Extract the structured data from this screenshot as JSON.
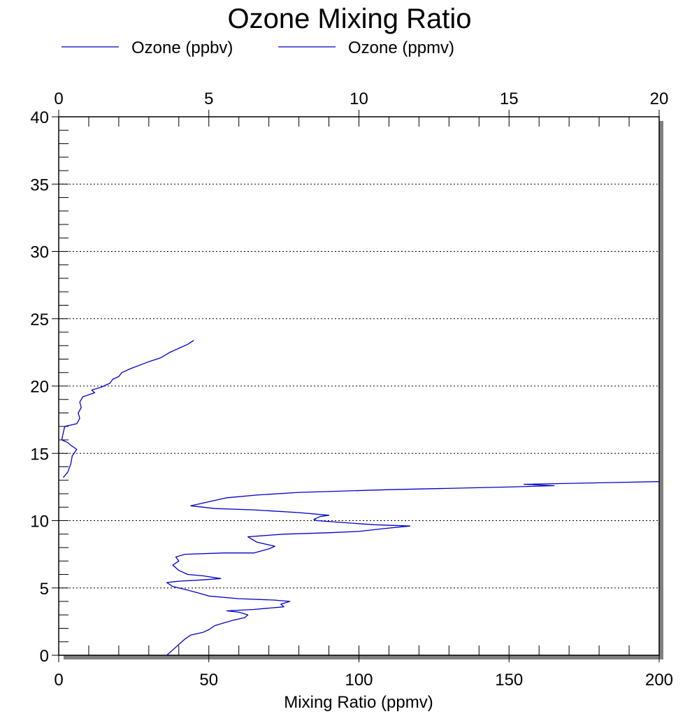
{
  "chart_data": {
    "type": "line",
    "title": "Ozone Mixing Ratio",
    "xlabel": "Mixing Ratio (ppmv)",
    "ylabel": "",
    "x2label": "",
    "xlim": [
      0,
      200
    ],
    "x2lim": [
      0,
      20
    ],
    "ylim": [
      0,
      40
    ],
    "x_ticks": [
      "0",
      "50",
      "100",
      "150",
      "200"
    ],
    "x2_ticks": [
      "0",
      "5",
      "10",
      "15",
      "20"
    ],
    "y_ticks": [
      "0",
      "5",
      "10",
      "15",
      "20",
      "25",
      "30",
      "35",
      "40"
    ],
    "grid": "horizontal-dotted",
    "legend": "top",
    "series": [
      {
        "name": "Ozone (ppbv)",
        "axis": "bottom",
        "color": "#0000c8",
        "points": [
          [
            36,
            0.0
          ],
          [
            38,
            0.4
          ],
          [
            40,
            0.8
          ],
          [
            42,
            1.2
          ],
          [
            44,
            1.5
          ],
          [
            48,
            1.7
          ],
          [
            50,
            1.9
          ],
          [
            52,
            2.2
          ],
          [
            55,
            2.4
          ],
          [
            58,
            2.6
          ],
          [
            62,
            2.8
          ],
          [
            63,
            3.0
          ],
          [
            60,
            3.2
          ],
          [
            56,
            3.3
          ],
          [
            65,
            3.4
          ],
          [
            70,
            3.5
          ],
          [
            75,
            3.6
          ],
          [
            74,
            3.8
          ],
          [
            77,
            4.0
          ],
          [
            72,
            4.1
          ],
          [
            60,
            4.2
          ],
          [
            50,
            4.4
          ],
          [
            47,
            4.6
          ],
          [
            42,
            4.9
          ],
          [
            38,
            5.1
          ],
          [
            36,
            5.4
          ],
          [
            40,
            5.5
          ],
          [
            48,
            5.6
          ],
          [
            54,
            5.7
          ],
          [
            48,
            5.9
          ],
          [
            43,
            6.0
          ],
          [
            40,
            6.3
          ],
          [
            38,
            6.7
          ],
          [
            40,
            7.0
          ],
          [
            39,
            7.3
          ],
          [
            42,
            7.5
          ],
          [
            55,
            7.6
          ],
          [
            65,
            7.6
          ],
          [
            70,
            7.9
          ],
          [
            72,
            8.1
          ],
          [
            66,
            8.4
          ],
          [
            63,
            8.8
          ],
          [
            75,
            9.0
          ],
          [
            90,
            9.1
          ],
          [
            100,
            9.2
          ],
          [
            108,
            9.4
          ],
          [
            117,
            9.6
          ],
          [
            105,
            9.7
          ],
          [
            92,
            9.9
          ],
          [
            86,
            10.0
          ],
          [
            85,
            10.1
          ],
          [
            87,
            10.3
          ],
          [
            90,
            10.4
          ],
          [
            80,
            10.6
          ],
          [
            65,
            10.8
          ],
          [
            52,
            10.9
          ],
          [
            44,
            11.1
          ],
          [
            50,
            11.4
          ],
          [
            56,
            11.7
          ],
          [
            66,
            11.9
          ],
          [
            80,
            12.1
          ],
          [
            110,
            12.3
          ],
          [
            150,
            12.5
          ],
          [
            165,
            12.6
          ],
          [
            155,
            12.7
          ],
          [
            200,
            12.9
          ]
        ]
      },
      {
        "name": "Ozone (ppmv)",
        "axis": "top",
        "color": "#0000c8",
        "points": [
          [
            0.15,
            13.2
          ],
          [
            0.3,
            13.6
          ],
          [
            0.4,
            14.2
          ],
          [
            0.45,
            14.8
          ],
          [
            0.6,
            15.3
          ],
          [
            0.4,
            15.6
          ],
          [
            0.3,
            15.8
          ],
          [
            0.1,
            16.0
          ],
          [
            0.15,
            16.5
          ],
          [
            0.2,
            17.0
          ],
          [
            0.6,
            17.2
          ],
          [
            0.7,
            17.6
          ],
          [
            0.65,
            18.0
          ],
          [
            0.75,
            18.4
          ],
          [
            0.7,
            18.8
          ],
          [
            0.8,
            19.2
          ],
          [
            1.2,
            19.5
          ],
          [
            1.1,
            19.7
          ],
          [
            1.4,
            19.9
          ],
          [
            1.7,
            20.2
          ],
          [
            1.8,
            20.5
          ],
          [
            2.0,
            20.7
          ],
          [
            2.1,
            21.0
          ],
          [
            2.4,
            21.3
          ],
          [
            3.0,
            21.8
          ],
          [
            3.4,
            22.1
          ],
          [
            3.7,
            22.5
          ],
          [
            4.0,
            22.8
          ],
          [
            4.3,
            23.1
          ],
          [
            4.5,
            23.4
          ]
        ]
      }
    ]
  }
}
